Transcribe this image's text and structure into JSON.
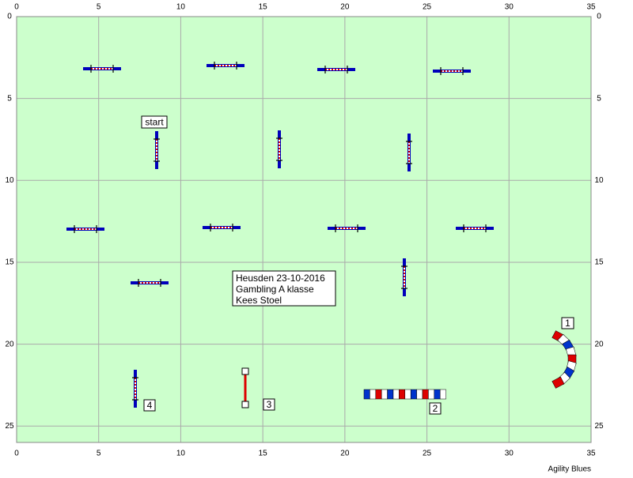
{
  "course": {
    "xlim": [
      0,
      35
    ],
    "ylim": [
      0,
      26
    ],
    "xticks": [
      0,
      5,
      10,
      15,
      20,
      25,
      30,
      35
    ],
    "yticks": [
      0,
      5,
      10,
      15,
      20,
      25
    ],
    "grid": true,
    "labels": [
      "start",
      "1",
      "2",
      "3",
      "4"
    ],
    "info": [
      "Heusden 23-10-2016",
      "Gambling A klasse",
      "Kees Stoel"
    ],
    "footer": "Agility Blues"
  }
}
